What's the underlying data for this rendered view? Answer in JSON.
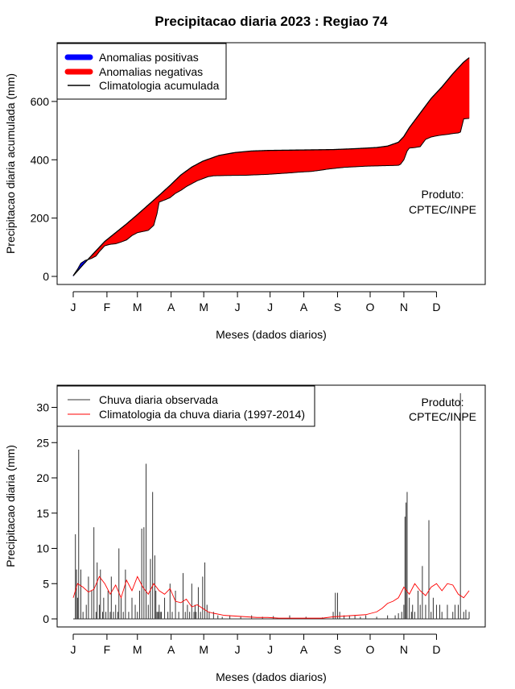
{
  "title": "Precipitacao diaria 2023 : Regiao 74",
  "months": [
    "J",
    "F",
    "M",
    "A",
    "M",
    "J",
    "J",
    "A",
    "S",
    "O",
    "N",
    "D"
  ],
  "chart_data": [
    {
      "type": "area",
      "xlabel": "Meses (dados diarios)",
      "ylabel": "Precipitacao diaria acumulada (mm)",
      "xlim": [
        1,
        365
      ],
      "ylim": [
        0,
        760
      ],
      "yticks": [
        0,
        200,
        400,
        600
      ],
      "legend_position": "top-left",
      "legend": [
        {
          "name": "Anomalias positivas",
          "color": "#0000ff",
          "kind": "thick"
        },
        {
          "name": "Anomalias negativas",
          "color": "#ff0000",
          "kind": "thick"
        },
        {
          "name": "Climatologia acumulada",
          "color": "#000000",
          "kind": "line"
        }
      ],
      "annotation": [
        "Produto:",
        "CPTEC/INPE"
      ],
      "climatology_cumulative": {
        "day": [
          1,
          10,
          20,
          30,
          40,
          50,
          60,
          70,
          80,
          90,
          100,
          110,
          120,
          135,
          150,
          165,
          180,
          200,
          220,
          240,
          260,
          280,
          290,
          300,
          305,
          310,
          320,
          330,
          340,
          350,
          360,
          365
        ],
        "mm": [
          2,
          40,
          80,
          120,
          150,
          180,
          212,
          245,
          278,
          312,
          348,
          375,
          395,
          415,
          425,
          430,
          432,
          433,
          434,
          435,
          438,
          442,
          447,
          460,
          480,
          510,
          560,
          610,
          650,
          695,
          735,
          750
        ]
      },
      "observed_cumulative": {
        "day": [
          1,
          5,
          8,
          12,
          15,
          18,
          22,
          25,
          30,
          35,
          40,
          45,
          50,
          55,
          60,
          70,
          75,
          78,
          80,
          85,
          90,
          95,
          100,
          105,
          110,
          115,
          120,
          125,
          130,
          140,
          160,
          180,
          200,
          210,
          220,
          230,
          235,
          240,
          245,
          250,
          260,
          270,
          280,
          290,
          300,
          302,
          305,
          308,
          310,
          315,
          320,
          325,
          330,
          335,
          340,
          345,
          350,
          355,
          357,
          360,
          362,
          365
        ],
        "mm": [
          3,
          25,
          45,
          55,
          58,
          62,
          70,
          85,
          105,
          110,
          112,
          118,
          125,
          140,
          150,
          158,
          175,
          215,
          255,
          262,
          270,
          285,
          295,
          308,
          318,
          328,
          335,
          342,
          345,
          346,
          347,
          350,
          355,
          358,
          360,
          365,
          368,
          370,
          372,
          374,
          376,
          378,
          379,
          380,
          381,
          385,
          400,
          430,
          440,
          442,
          445,
          470,
          478,
          482,
          485,
          487,
          490,
          492,
          495,
          540,
          541,
          542
        ]
      }
    },
    {
      "type": "bar",
      "xlabel": "Meses (dados diarios)",
      "ylabel": "Precipitacao diaria (mm)",
      "xlim": [
        1,
        365
      ],
      "ylim": [
        0,
        32
      ],
      "yticks": [
        0,
        5,
        10,
        15,
        20,
        25,
        30
      ],
      "legend_position": "top-left",
      "legend": [
        {
          "name": "Chuva diaria observada",
          "color": "#333333",
          "kind": "line"
        },
        {
          "name": "Climatologia da chuva diaria (1997-2014)",
          "color": "#ff0000",
          "kind": "line"
        }
      ],
      "annotation": [
        "Produto:",
        "CPTEC/INPE"
      ],
      "observed_daily": {
        "day": [
          3,
          4,
          5,
          6,
          8,
          10,
          13,
          15,
          18,
          20,
          22,
          23,
          25,
          26,
          28,
          29,
          31,
          33,
          35,
          36,
          38,
          40,
          42,
          43,
          45,
          47,
          49,
          52,
          55,
          58,
          60,
          62,
          64,
          66,
          68,
          70,
          72,
          74,
          76,
          77,
          78,
          79,
          80,
          81,
          82,
          85,
          88,
          90,
          92,
          95,
          98,
          102,
          104,
          106,
          108,
          110,
          112,
          113,
          114,
          116,
          118,
          120,
          122,
          124,
          126,
          130,
          134,
          138,
          145,
          155,
          165,
          175,
          185,
          200,
          215,
          230,
          240,
          242,
          244,
          246,
          250,
          255,
          260,
          265,
          270,
          280,
          290,
          297,
          300,
          303,
          305,
          306,
          307,
          308,
          310,
          312,
          313,
          315,
          318,
          320,
          322,
          325,
          328,
          330,
          332,
          335,
          338,
          340,
          345,
          350,
          352,
          355,
          357,
          360,
          362,
          365
        ],
        "mm": [
          12,
          7,
          3,
          24,
          7,
          1,
          2,
          6,
          4,
          13,
          1,
          8,
          2,
          7,
          1,
          3,
          1,
          4,
          1,
          6,
          1,
          2,
          1,
          10,
          3,
          1,
          7,
          1,
          3,
          2,
          1,
          4,
          12.8,
          13,
          22,
          2,
          8.5,
          18,
          9,
          4,
          1,
          1,
          2,
          1,
          1,
          3,
          1,
          5,
          1,
          4,
          1,
          6.5,
          1,
          2,
          1,
          5,
          1,
          2,
          1,
          4.5,
          1,
          6,
          8,
          2,
          1,
          1,
          0.5,
          0.3,
          0.5,
          0.3,
          0.5,
          0.3,
          0.4,
          0.5,
          0.3,
          0.2,
          1,
          3.7,
          3.7,
          1,
          0.5,
          0.4,
          0.5,
          0.3,
          0.5,
          0.3,
          0.5,
          0.5,
          0.8,
          1,
          2,
          14.5,
          16.5,
          18,
          3,
          1,
          2,
          1,
          4,
          2,
          7.5,
          2,
          14,
          1,
          3,
          2,
          2,
          1,
          2,
          1,
          2,
          2,
          32,
          1,
          1.3,
          1
        ]
      },
      "climatology_daily": {
        "day": [
          1,
          5,
          10,
          15,
          20,
          25,
          30,
          35,
          40,
          45,
          50,
          55,
          60,
          65,
          70,
          75,
          80,
          85,
          90,
          95,
          100,
          105,
          110,
          115,
          120,
          125,
          130,
          140,
          150,
          160,
          170,
          180,
          190,
          200,
          210,
          220,
          230,
          240,
          250,
          260,
          270,
          280,
          285,
          290,
          295,
          300,
          305,
          310,
          315,
          320,
          325,
          330,
          335,
          340,
          345,
          350,
          355,
          360,
          365
        ],
        "mm": [
          3,
          5,
          4.5,
          3.8,
          4.2,
          6,
          5,
          3.5,
          4.8,
          3,
          5.5,
          4,
          6,
          4.5,
          3.5,
          5,
          4,
          3.5,
          4.3,
          2.5,
          2.3,
          2.8,
          1.7,
          2,
          1.5,
          1,
          0.8,
          0.5,
          0.4,
          0.3,
          0.2,
          0.2,
          0.1,
          0.1,
          0.1,
          0.1,
          0.1,
          0.3,
          0.4,
          0.5,
          0.6,
          1,
          1.5,
          2.2,
          2.5,
          3,
          4.5,
          3.5,
          5,
          4,
          3.3,
          4.5,
          5,
          4,
          5,
          4.8,
          3.5,
          3,
          4
        ]
      }
    }
  ]
}
